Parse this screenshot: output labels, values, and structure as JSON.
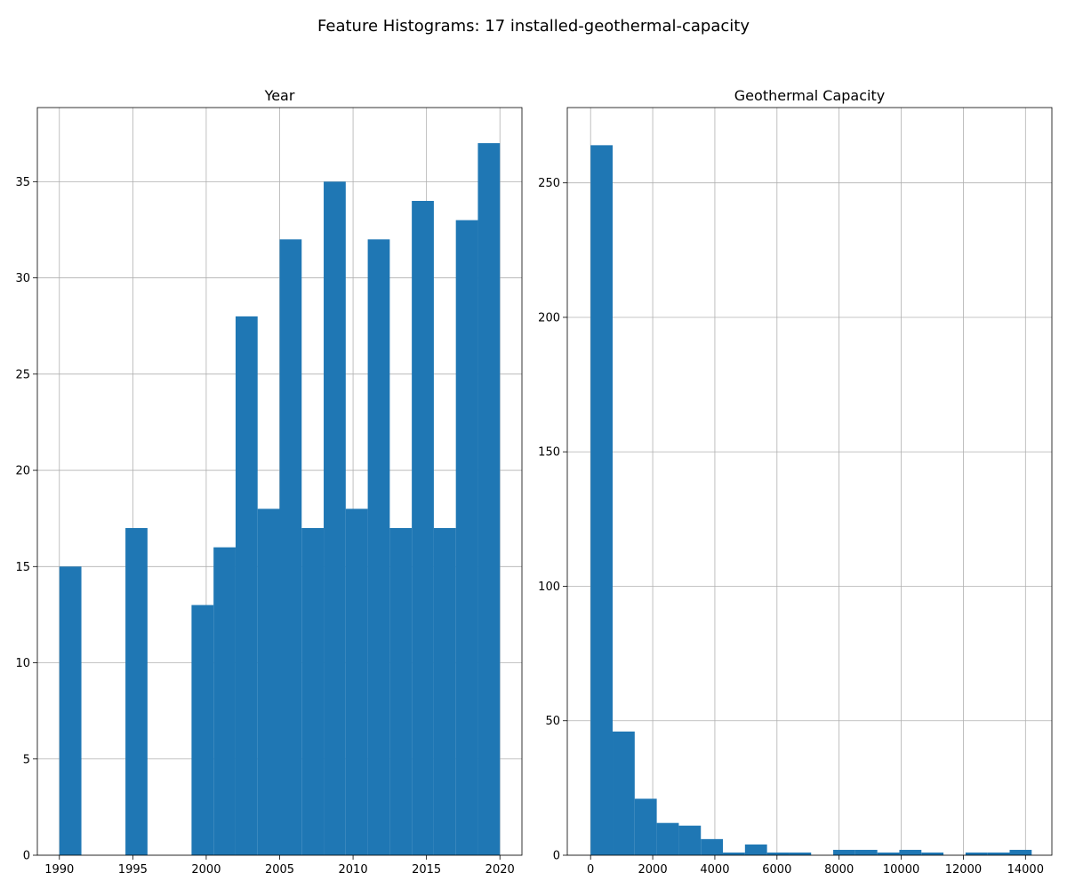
{
  "figure": {
    "title": "Feature Histograms: 17 installed-geothermal-capacity"
  },
  "colors": {
    "bar": "#1f77b4",
    "grid": "#b0b0b0"
  },
  "chart_data": [
    {
      "type": "bar",
      "title": "Year",
      "grid": true,
      "xlim": [
        1988.5,
        2021.5
      ],
      "ylim": [
        0,
        38.85
      ],
      "xticks": [
        1990,
        1995,
        2000,
        2005,
        2010,
        2015,
        2020
      ],
      "yticks": [
        0,
        5,
        10,
        15,
        20,
        25,
        30,
        35
      ],
      "bins": [
        {
          "x0": 1990.0,
          "x1": 1991.5,
          "value": 15
        },
        {
          "x0": 1991.5,
          "x1": 1993.0,
          "value": 0
        },
        {
          "x0": 1993.0,
          "x1": 1994.5,
          "value": 0
        },
        {
          "x0": 1994.5,
          "x1": 1996.0,
          "value": 17
        },
        {
          "x0": 1996.0,
          "x1": 1997.5,
          "value": 0
        },
        {
          "x0": 1997.5,
          "x1": 1999.0,
          "value": 0
        },
        {
          "x0": 1999.0,
          "x1": 2000.5,
          "value": 13
        },
        {
          "x0": 2000.5,
          "x1": 2002.0,
          "value": 16
        },
        {
          "x0": 2002.0,
          "x1": 2003.5,
          "value": 28
        },
        {
          "x0": 2003.5,
          "x1": 2005.0,
          "value": 18
        },
        {
          "x0": 2005.0,
          "x1": 2006.5,
          "value": 32
        },
        {
          "x0": 2006.5,
          "x1": 2008.0,
          "value": 17
        },
        {
          "x0": 2008.0,
          "x1": 2009.5,
          "value": 35
        },
        {
          "x0": 2009.5,
          "x1": 2011.0,
          "value": 18
        },
        {
          "x0": 2011.0,
          "x1": 2012.5,
          "value": 32
        },
        {
          "x0": 2012.5,
          "x1": 2014.0,
          "value": 17
        },
        {
          "x0": 2014.0,
          "x1": 2015.5,
          "value": 34
        },
        {
          "x0": 2015.5,
          "x1": 2017.0,
          "value": 17
        },
        {
          "x0": 2017.0,
          "x1": 2018.5,
          "value": 33
        },
        {
          "x0": 2018.5,
          "x1": 2020.0,
          "value": 37
        }
      ]
    },
    {
      "type": "bar",
      "title": "Geothermal Capacity",
      "grid": true,
      "xlim": [
        -750,
        14850
      ],
      "ylim": [
        0,
        278
      ],
      "xticks": [
        0,
        2000,
        4000,
        6000,
        8000,
        10000,
        12000,
        14000
      ],
      "yticks": [
        0,
        50,
        100,
        150,
        200,
        250
      ],
      "bins": [
        {
          "x0": 0,
          "x1": 710,
          "value": 264
        },
        {
          "x0": 710,
          "x1": 1420,
          "value": 46
        },
        {
          "x0": 1420,
          "x1": 2130,
          "value": 21
        },
        {
          "x0": 2130,
          "x1": 2840,
          "value": 12
        },
        {
          "x0": 2840,
          "x1": 3550,
          "value": 11
        },
        {
          "x0": 3550,
          "x1": 4260,
          "value": 6
        },
        {
          "x0": 4260,
          "x1": 4970,
          "value": 1
        },
        {
          "x0": 4970,
          "x1": 5680,
          "value": 4
        },
        {
          "x0": 5680,
          "x1": 6390,
          "value": 1
        },
        {
          "x0": 6390,
          "x1": 7100,
          "value": 1
        },
        {
          "x0": 7100,
          "x1": 7810,
          "value": 0
        },
        {
          "x0": 7810,
          "x1": 8520,
          "value": 2
        },
        {
          "x0": 8520,
          "x1": 9230,
          "value": 2
        },
        {
          "x0": 9230,
          "x1": 9940,
          "value": 1
        },
        {
          "x0": 9940,
          "x1": 10650,
          "value": 2
        },
        {
          "x0": 10650,
          "x1": 11360,
          "value": 1
        },
        {
          "x0": 11360,
          "x1": 12070,
          "value": 0
        },
        {
          "x0": 12070,
          "x1": 12780,
          "value": 1
        },
        {
          "x0": 12780,
          "x1": 13490,
          "value": 1
        },
        {
          "x0": 13490,
          "x1": 14200,
          "value": 2
        }
      ]
    }
  ]
}
